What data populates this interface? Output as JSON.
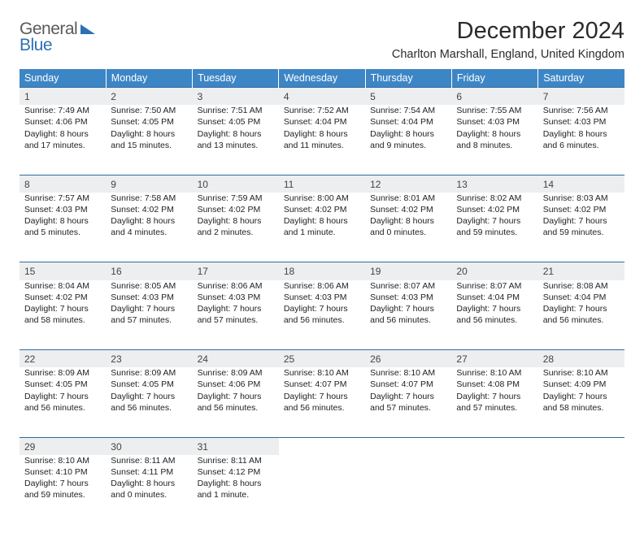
{
  "logo": {
    "line1": "General",
    "line2": "Blue"
  },
  "title": "December 2024",
  "location": "Charlton Marshall, England, United Kingdom",
  "colors": {
    "header_bg": "#3d86c6",
    "header_text": "#ffffff",
    "daynum_bg": "#eceeef",
    "rule": "#326a9e",
    "logo_gray": "#5a5a5a",
    "logo_blue": "#2f6fb3"
  },
  "weekdays": [
    "Sunday",
    "Monday",
    "Tuesday",
    "Wednesday",
    "Thursday",
    "Friday",
    "Saturday"
  ],
  "weeks": [
    [
      {
        "n": "1",
        "sr": "7:49 AM",
        "ss": "4:06 PM",
        "dl": "8 hours and 17 minutes."
      },
      {
        "n": "2",
        "sr": "7:50 AM",
        "ss": "4:05 PM",
        "dl": "8 hours and 15 minutes."
      },
      {
        "n": "3",
        "sr": "7:51 AM",
        "ss": "4:05 PM",
        "dl": "8 hours and 13 minutes."
      },
      {
        "n": "4",
        "sr": "7:52 AM",
        "ss": "4:04 PM",
        "dl": "8 hours and 11 minutes."
      },
      {
        "n": "5",
        "sr": "7:54 AM",
        "ss": "4:04 PM",
        "dl": "8 hours and 9 minutes."
      },
      {
        "n": "6",
        "sr": "7:55 AM",
        "ss": "4:03 PM",
        "dl": "8 hours and 8 minutes."
      },
      {
        "n": "7",
        "sr": "7:56 AM",
        "ss": "4:03 PM",
        "dl": "8 hours and 6 minutes."
      }
    ],
    [
      {
        "n": "8",
        "sr": "7:57 AM",
        "ss": "4:03 PM",
        "dl": "8 hours and 5 minutes."
      },
      {
        "n": "9",
        "sr": "7:58 AM",
        "ss": "4:02 PM",
        "dl": "8 hours and 4 minutes."
      },
      {
        "n": "10",
        "sr": "7:59 AM",
        "ss": "4:02 PM",
        "dl": "8 hours and 2 minutes."
      },
      {
        "n": "11",
        "sr": "8:00 AM",
        "ss": "4:02 PM",
        "dl": "8 hours and 1 minute."
      },
      {
        "n": "12",
        "sr": "8:01 AM",
        "ss": "4:02 PM",
        "dl": "8 hours and 0 minutes."
      },
      {
        "n": "13",
        "sr": "8:02 AM",
        "ss": "4:02 PM",
        "dl": "7 hours and 59 minutes."
      },
      {
        "n": "14",
        "sr": "8:03 AM",
        "ss": "4:02 PM",
        "dl": "7 hours and 59 minutes."
      }
    ],
    [
      {
        "n": "15",
        "sr": "8:04 AM",
        "ss": "4:02 PM",
        "dl": "7 hours and 58 minutes."
      },
      {
        "n": "16",
        "sr": "8:05 AM",
        "ss": "4:03 PM",
        "dl": "7 hours and 57 minutes."
      },
      {
        "n": "17",
        "sr": "8:06 AM",
        "ss": "4:03 PM",
        "dl": "7 hours and 57 minutes."
      },
      {
        "n": "18",
        "sr": "8:06 AM",
        "ss": "4:03 PM",
        "dl": "7 hours and 56 minutes."
      },
      {
        "n": "19",
        "sr": "8:07 AM",
        "ss": "4:03 PM",
        "dl": "7 hours and 56 minutes."
      },
      {
        "n": "20",
        "sr": "8:07 AM",
        "ss": "4:04 PM",
        "dl": "7 hours and 56 minutes."
      },
      {
        "n": "21",
        "sr": "8:08 AM",
        "ss": "4:04 PM",
        "dl": "7 hours and 56 minutes."
      }
    ],
    [
      {
        "n": "22",
        "sr": "8:09 AM",
        "ss": "4:05 PM",
        "dl": "7 hours and 56 minutes."
      },
      {
        "n": "23",
        "sr": "8:09 AM",
        "ss": "4:05 PM",
        "dl": "7 hours and 56 minutes."
      },
      {
        "n": "24",
        "sr": "8:09 AM",
        "ss": "4:06 PM",
        "dl": "7 hours and 56 minutes."
      },
      {
        "n": "25",
        "sr": "8:10 AM",
        "ss": "4:07 PM",
        "dl": "7 hours and 56 minutes."
      },
      {
        "n": "26",
        "sr": "8:10 AM",
        "ss": "4:07 PM",
        "dl": "7 hours and 57 minutes."
      },
      {
        "n": "27",
        "sr": "8:10 AM",
        "ss": "4:08 PM",
        "dl": "7 hours and 57 minutes."
      },
      {
        "n": "28",
        "sr": "8:10 AM",
        "ss": "4:09 PM",
        "dl": "7 hours and 58 minutes."
      }
    ],
    [
      {
        "n": "29",
        "sr": "8:10 AM",
        "ss": "4:10 PM",
        "dl": "7 hours and 59 minutes."
      },
      {
        "n": "30",
        "sr": "8:11 AM",
        "ss": "4:11 PM",
        "dl": "8 hours and 0 minutes."
      },
      {
        "n": "31",
        "sr": "8:11 AM",
        "ss": "4:12 PM",
        "dl": "8 hours and 1 minute."
      },
      null,
      null,
      null,
      null
    ]
  ],
  "labels": {
    "sunrise": "Sunrise:",
    "sunset": "Sunset:",
    "daylight": "Daylight:"
  }
}
